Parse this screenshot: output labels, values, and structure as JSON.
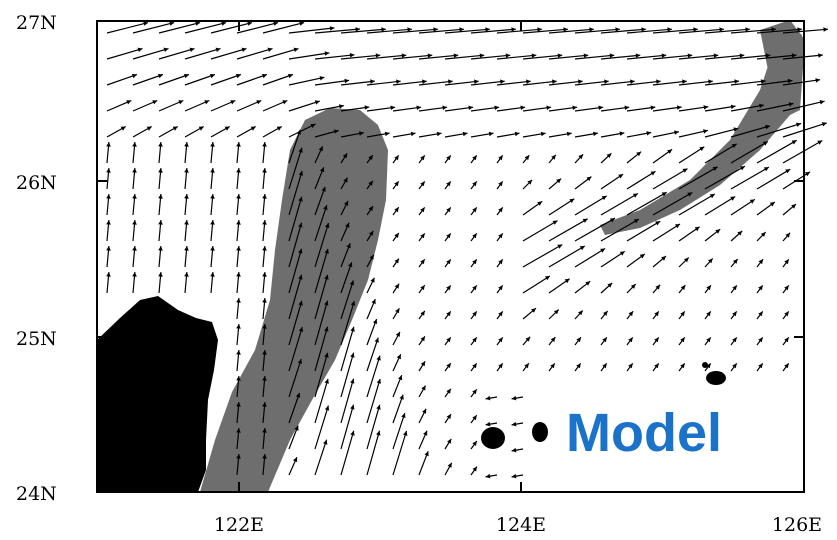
{
  "axes": {
    "x_ticks": [
      "122E",
      "124E",
      "126E"
    ],
    "y_ticks": [
      "27N",
      "26N",
      "25N",
      "24N"
    ]
  },
  "extent": {
    "lon_min": 121,
    "lon_max": 126,
    "lat_min": 24,
    "lat_max": 27
  },
  "legend_label": "Model",
  "colors": {
    "land": "#000000",
    "shading": "#6e6e6e",
    "arrows": "#000000",
    "label": "#1a73c8",
    "background": "#ffffff"
  }
}
